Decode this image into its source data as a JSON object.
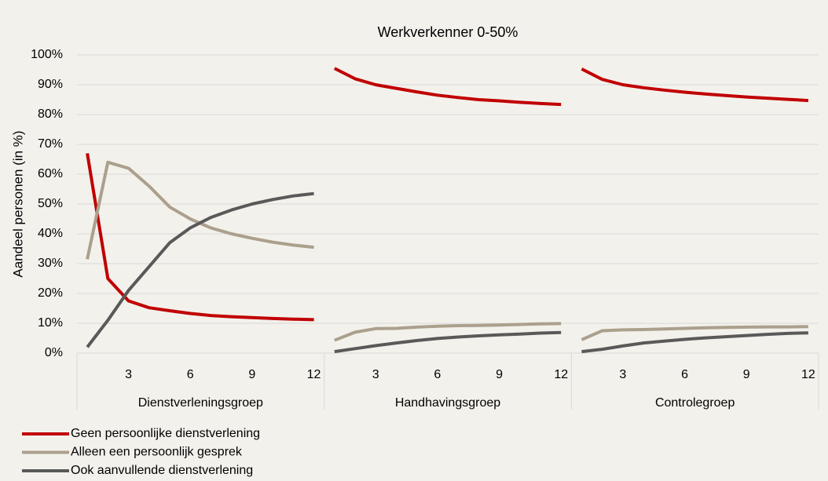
{
  "chart_data": {
    "type": "line",
    "title": "Werkverkenner 0-50%",
    "y_label": "Aandeel personen (in %)",
    "groups": [
      "Dienstverleningsgroep",
      "Handhavingsgroep",
      "Controlegroep"
    ],
    "x": [
      1,
      2,
      3,
      4,
      5,
      6,
      7,
      8,
      9,
      10,
      11,
      12
    ],
    "xlim": [
      0.5,
      12.5
    ],
    "xticks": [
      3,
      6,
      9,
      12
    ],
    "ylim": [
      0,
      100
    ],
    "yticks": [
      {
        "value": 0,
        "label": "0%"
      },
      {
        "value": 10,
        "label": "10%"
      },
      {
        "value": 20,
        "label": "20%"
      },
      {
        "value": 30,
        "label": "30%"
      },
      {
        "value": 40,
        "label": "40%"
      },
      {
        "value": 50,
        "label": "50%"
      },
      {
        "value": 60,
        "label": "60%"
      },
      {
        "value": 70,
        "label": "70%"
      },
      {
        "value": 80,
        "label": "80%"
      },
      {
        "value": 90,
        "label": "90%"
      },
      {
        "value": 100,
        "label": "100%"
      }
    ],
    "grid": true,
    "series": [
      {
        "name": "Geen persoonlijke dienstverlening",
        "color": "#c00000",
        "values": [
          [
            67,
            25,
            17.5,
            15.2,
            14.2,
            13.3,
            12.6,
            12.2,
            11.9,
            11.6,
            11.4,
            11.2
          ],
          [
            95.5,
            92,
            90,
            88.8,
            87.6,
            86.5,
            85.7,
            85,
            84.6,
            84.1,
            83.7,
            83.4
          ],
          [
            95.3,
            91.8,
            90,
            89,
            88.2,
            87.5,
            86.9,
            86.4,
            85.9,
            85.5,
            85.1,
            84.7
          ]
        ]
      },
      {
        "name": "Alleen een persoonlijk gesprek",
        "color": "#aba08c",
        "values": [
          [
            31.5,
            64,
            62,
            56,
            49,
            45,
            42,
            40,
            38.5,
            37.2,
            36.2,
            35.5
          ],
          [
            4.3,
            7,
            8.2,
            8.3,
            8.7,
            9,
            9.2,
            9.3,
            9.4,
            9.6,
            9.8,
            9.9
          ],
          [
            4.5,
            7.5,
            7.8,
            7.9,
            8.1,
            8.3,
            8.5,
            8.6,
            8.7,
            8.8,
            8.8,
            8.9
          ]
        ]
      },
      {
        "name": "Ook aanvullende dienstverlening",
        "color": "#595959",
        "values": [
          [
            2,
            11,
            21,
            29,
            37,
            42,
            45.5,
            48,
            50,
            51.5,
            52.7,
            53.5
          ],
          [
            0.5,
            1.5,
            2.5,
            3.4,
            4.2,
            4.9,
            5.4,
            5.8,
            6.1,
            6.4,
            6.7,
            6.9
          ],
          [
            0.5,
            1.3,
            2.4,
            3.4,
            4,
            4.6,
            5.1,
            5.5,
            5.9,
            6.3,
            6.6,
            6.8
          ]
        ]
      }
    ]
  }
}
